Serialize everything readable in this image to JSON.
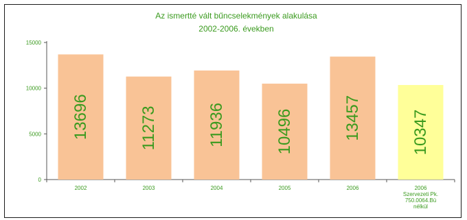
{
  "chart_data": {
    "type": "bar",
    "title_lines": [
      "Az ismertté vált bűncselekmények alakulása",
      "2002-2006. években"
    ],
    "categories": [
      {
        "lines": [
          "2002"
        ]
      },
      {
        "lines": [
          "2003"
        ]
      },
      {
        "lines": [
          "2004"
        ]
      },
      {
        "lines": [
          "2005"
        ]
      },
      {
        "lines": [
          "2006"
        ]
      },
      {
        "lines": [
          "2006",
          "Szervezeti Pk.",
          "750.0064.Bü",
          "nélkül"
        ]
      }
    ],
    "values": [
      13696,
      11273,
      11936,
      10496,
      13457,
      10347
    ],
    "ylim": [
      0,
      15000
    ],
    "yticks": [
      0,
      5000,
      10000,
      15000
    ],
    "grid": false,
    "legend": "none",
    "colors": {
      "bar": "#f9c396",
      "bar_highlight": "#ffff99",
      "text": "#3a9a1e",
      "axis": "#555555"
    },
    "highlight_index": 5
  }
}
